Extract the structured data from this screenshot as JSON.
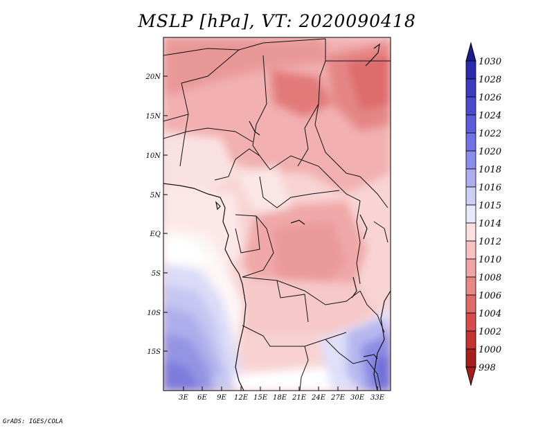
{
  "title": "MSLP [hPa], VT: 2020090418",
  "credit": "GrADS: IGES/COLA",
  "map": {
    "lon_labels": [
      "3E",
      "6E",
      "9E",
      "12E",
      "15E",
      "18E",
      "21E",
      "24E",
      "27E",
      "30E",
      "33E"
    ],
    "lat_labels": [
      "20N",
      "15N",
      "10N",
      "5N",
      "EQ",
      "5S",
      "10S",
      "15S"
    ]
  },
  "colorbar": {
    "levels": [
      "1030",
      "1028",
      "1026",
      "1024",
      "1022",
      "1020",
      "1018",
      "1016",
      "1015",
      "1014",
      "1012",
      "1010",
      "1008",
      "1006",
      "1004",
      "1002",
      "1000",
      "998"
    ],
    "colors": [
      "#1c1c8e",
      "#2a2ab0",
      "#3b3bc4",
      "#4b4bd2",
      "#5c5cdc",
      "#7272e4",
      "#8c8cec",
      "#aeaef2",
      "#cfcff6",
      "#e9e9fb",
      "#fbe1e1",
      "#f6c2c2",
      "#f0a5a5",
      "#ea8888",
      "#e06a6a",
      "#d64c4c",
      "#c43232",
      "#a81e1e"
    ]
  }
}
